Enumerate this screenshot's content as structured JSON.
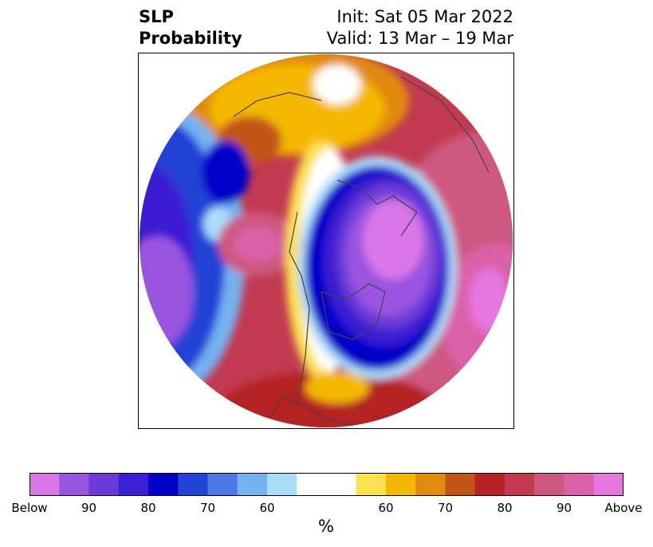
{
  "title": {
    "left_line1": "SLP",
    "left_line2": "Probability",
    "right_line1": "Init: Sat 05 Mar 2022",
    "right_line2": "Valid: 13 Mar – 19 Mar"
  },
  "colorbar": {
    "label": "%",
    "colors": [
      "#d977e8",
      "#9a55e0",
      "#6b3ad8",
      "#3b1fd2",
      "#0000c8",
      "#2143d6",
      "#4a79e4",
      "#74b2f0",
      "#aadcfa",
      "#ffffff",
      "#ffffff",
      "#fde050",
      "#f5b800",
      "#e08a10",
      "#c25418",
      "#b42424",
      "#c23a50",
      "#ce5880",
      "#db60a8",
      "#e676e0"
    ],
    "ticks": [
      "Below",
      "90",
      "80",
      "70",
      "60",
      "",
      "60",
      "70",
      "80",
      "90",
      "Above"
    ]
  }
}
